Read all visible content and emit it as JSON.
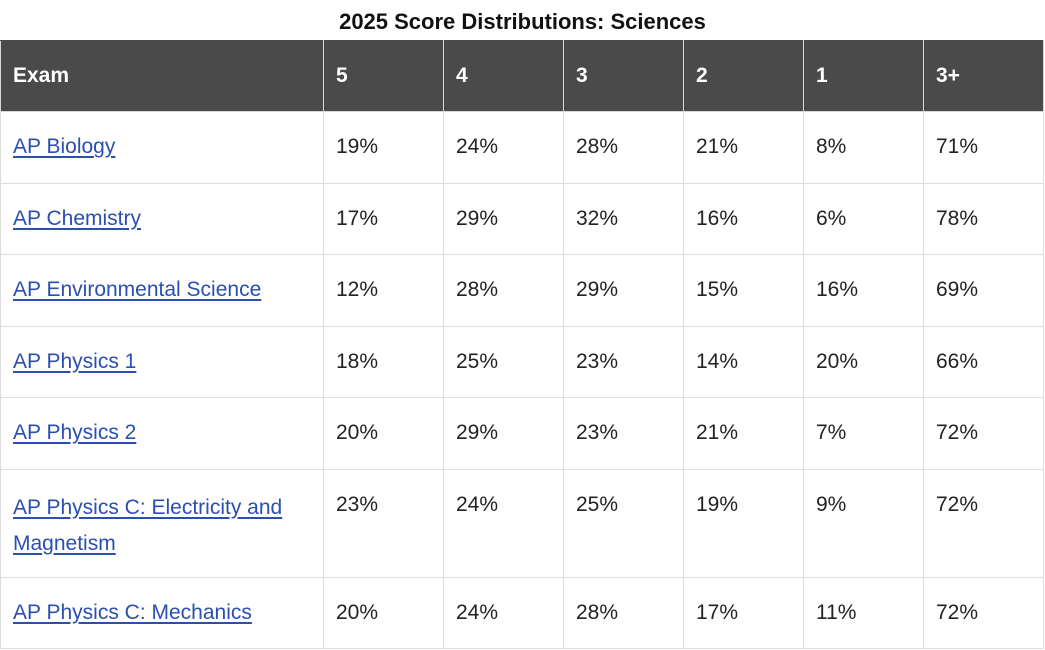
{
  "title": "2025 Score Distributions: Sciences",
  "colors": {
    "header_bg": "#4a4a4a",
    "link": "#2a4fb0"
  },
  "headers": [
    "Exam",
    "5",
    "4",
    "3",
    "2",
    "1",
    "3+"
  ],
  "rows": [
    {
      "exam": "AP Biology",
      "scores": [
        "19%",
        "24%",
        "28%",
        "21%",
        "8%",
        "71%"
      ]
    },
    {
      "exam": "AP Chemistry",
      "scores": [
        "17%",
        "29%",
        "32%",
        "16%",
        "6%",
        "78%"
      ]
    },
    {
      "exam": "AP Environmental Science",
      "scores": [
        "12%",
        "28%",
        "29%",
        "15%",
        "16%",
        "69%"
      ]
    },
    {
      "exam": "AP Physics 1",
      "scores": [
        "18%",
        "25%",
        "23%",
        "14%",
        "20%",
        "66%"
      ]
    },
    {
      "exam": "AP Physics 2",
      "scores": [
        "20%",
        "29%",
        "23%",
        "21%",
        "7%",
        "72%"
      ]
    },
    {
      "exam": "AP Physics C: Electricity and Magnetism",
      "scores": [
        "23%",
        "24%",
        "25%",
        "19%",
        "9%",
        "72%"
      ]
    },
    {
      "exam": "AP Physics C: Mechanics",
      "scores": [
        "20%",
        "24%",
        "28%",
        "17%",
        "11%",
        "72%"
      ]
    }
  ]
}
